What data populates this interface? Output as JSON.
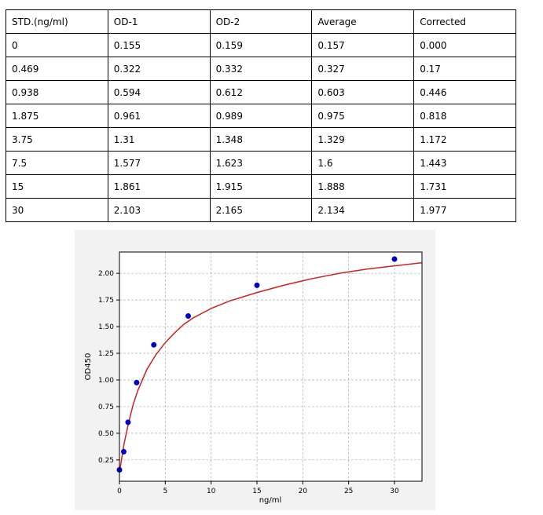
{
  "table": {
    "headers": [
      "STD.(ng/ml)",
      "OD-1",
      "OD-2",
      "Average",
      "Corrected"
    ],
    "rows": [
      [
        "0",
        "0.155",
        "0.159",
        "0.157",
        "0.000"
      ],
      [
        "0.469",
        "0.322",
        "0.332",
        "0.327",
        "0.17"
      ],
      [
        "0.938",
        "0.594",
        "0.612",
        "0.603",
        "0.446"
      ],
      [
        "1.875",
        "0.961",
        "0.989",
        "0.975",
        "0.818"
      ],
      [
        "3.75",
        "1.31",
        "1.348",
        "1.329",
        "1.172"
      ],
      [
        "7.5",
        "1.577",
        "1.623",
        "1.6",
        "1.443"
      ],
      [
        "15",
        "1.861",
        "1.915",
        "1.888",
        "1.731"
      ],
      [
        "30",
        "2.103",
        "2.165",
        "2.134",
        "1.977"
      ]
    ]
  },
  "chart_data": {
    "type": "scatter",
    "xlabel": "ng/ml",
    "ylabel": "OD450",
    "xlim": [
      0,
      33
    ],
    "ylim": [
      0.05,
      2.2
    ],
    "xticks": [
      0,
      5,
      10,
      15,
      20,
      25,
      30
    ],
    "xtick_labels": [
      "0",
      "5",
      "10",
      "15",
      "20",
      "25",
      "30"
    ],
    "yticks": [
      0.25,
      0.5,
      0.75,
      1.0,
      1.25,
      1.5,
      1.75,
      2.0
    ],
    "ytick_labels": [
      "0.25",
      "0.50",
      "0.75",
      "1.00",
      "1.25",
      "1.50",
      "1.75",
      "2.00"
    ],
    "grid": true,
    "points": {
      "x": [
        0,
        0.469,
        0.938,
        1.875,
        3.75,
        7.5,
        15,
        30
      ],
      "y": [
        0.157,
        0.327,
        0.603,
        0.975,
        1.329,
        1.6,
        1.888,
        2.134
      ]
    },
    "fit_curve": {
      "x": [
        0,
        0.5,
        1,
        1.5,
        2,
        3,
        4,
        5,
        6,
        7,
        8,
        10,
        12,
        15,
        18,
        21,
        24,
        27,
        30,
        33
      ],
      "y": [
        0.13,
        0.4,
        0.6,
        0.77,
        0.9,
        1.1,
        1.24,
        1.35,
        1.44,
        1.52,
        1.58,
        1.67,
        1.74,
        1.82,
        1.89,
        1.95,
        2.0,
        2.04,
        2.07,
        2.1
      ]
    },
    "colors": {
      "points": "#0000cc",
      "curve": "#cc2222",
      "grid": "#b0b0b0",
      "background": "#f2f2f2"
    }
  }
}
